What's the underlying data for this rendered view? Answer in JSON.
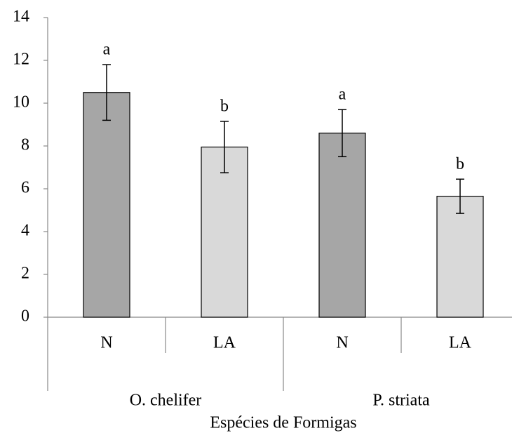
{
  "chart_data": {
    "type": "bar",
    "x_label": "Espécies de Formigas",
    "categories": [
      "N",
      "LA",
      "N",
      "LA"
    ],
    "groups": [
      {
        "name": "O. chelifer",
        "size": 2
      },
      {
        "name": "P. striata",
        "size": 2
      }
    ],
    "values": [
      10.5,
      7.95,
      8.6,
      5.65
    ],
    "errors": [
      1.3,
      1.2,
      1.1,
      0.8
    ],
    "letters": [
      "a",
      "b",
      "a",
      "b"
    ],
    "colors": [
      "#a6a6a6",
      "#d9d9d9",
      "#a6a6a6",
      "#d9d9d9"
    ],
    "ylim": [
      0,
      14
    ],
    "yticks": [
      0,
      2,
      4,
      6,
      8,
      10,
      12,
      14
    ],
    "grid": false
  }
}
